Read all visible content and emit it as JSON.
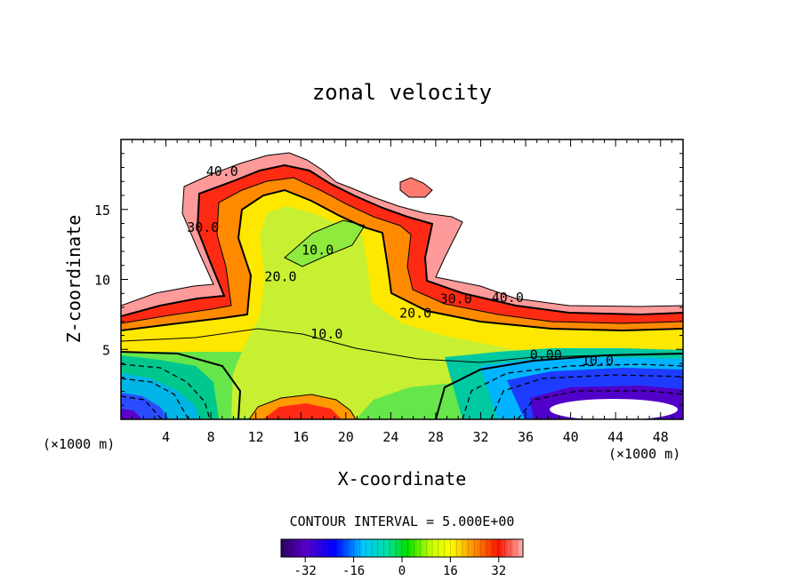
{
  "chart_data": {
    "type": "filled-contour",
    "title": "zonal velocity",
    "xlabel": "X-coordinate",
    "ylabel": "Z-coordinate",
    "x_unit_left": "(×1000 m)",
    "x_unit_right": "(×1000 m)",
    "xlim": [
      0,
      50
    ],
    "ylim": [
      0,
      20
    ],
    "x_ticks": [
      4,
      8,
      12,
      16,
      20,
      24,
      28,
      32,
      36,
      40,
      44,
      48
    ],
    "y_ticks": [
      5,
      10,
      15
    ],
    "contour_interval_text": "CONTOUR INTERVAL = 5.000E+00",
    "colorbar": {
      "min": -40,
      "max": 40,
      "tick_labels": [
        "-32",
        "-16",
        "0",
        "16",
        "32"
      ],
      "tick_values": [
        -32,
        -16,
        0,
        16,
        32
      ]
    },
    "contour_labels": [
      {
        "text": "40.0",
        "x": 9.0,
        "z": 17.7
      },
      {
        "text": "30.0",
        "x": 7.3,
        "z": 13.7
      },
      {
        "text": "20.0",
        "x": 14.2,
        "z": 10.2
      },
      {
        "text": "10.0",
        "x": 17.5,
        "z": 12.1
      },
      {
        "text": "20.0",
        "x": 26.2,
        "z": 7.6
      },
      {
        "text": "30.0",
        "x": 29.8,
        "z": 8.6
      },
      {
        "text": "40.0",
        "x": 34.4,
        "z": 8.7
      },
      {
        "text": "10.0",
        "x": 18.3,
        "z": 6.1
      },
      {
        "text": "0.00",
        "x": 37.8,
        "z": 4.6
      },
      {
        "text": "10.0",
        "x": 42.4,
        "z": 4.2
      }
    ]
  }
}
